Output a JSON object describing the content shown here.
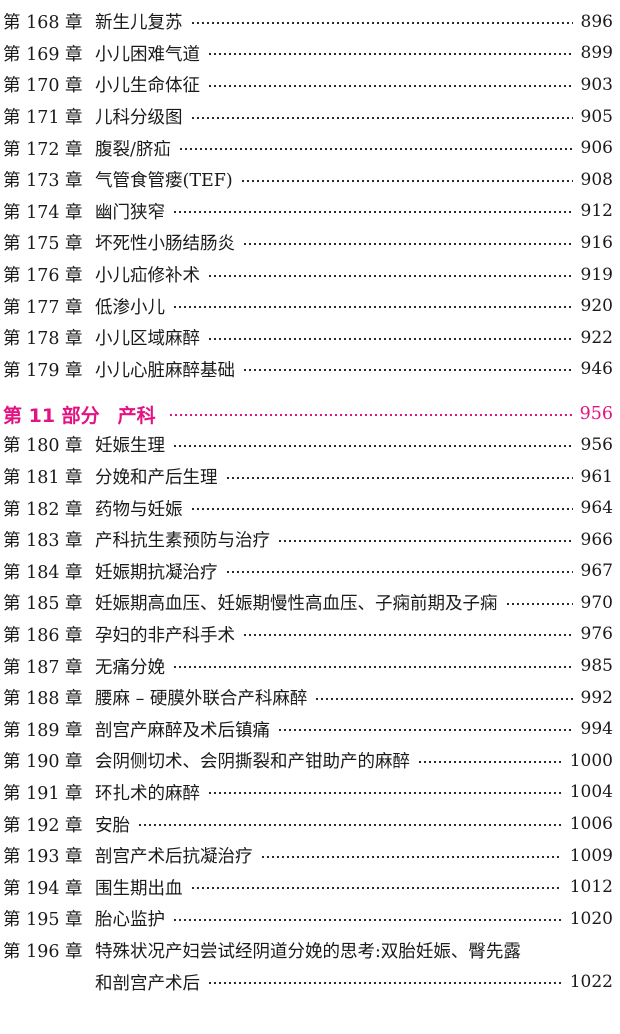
{
  "page": {
    "background": "#ffffff",
    "text_color": "#1a1a1a",
    "accent_color": "#e21382",
    "dot_color": "#2a2a2a"
  },
  "labels": {
    "chapter_prefix": "第",
    "chapter_suffix": "章",
    "part_prefix": "第",
    "part_suffix": "部分"
  },
  "toc": {
    "rows": [
      {
        "type": "chapter",
        "num": "168",
        "title": "新生儿复苏",
        "page": "896"
      },
      {
        "type": "chapter",
        "num": "169",
        "title": "小儿困难气道",
        "page": "899"
      },
      {
        "type": "chapter",
        "num": "170",
        "title": "小儿生命体征",
        "page": "903"
      },
      {
        "type": "chapter",
        "num": "171",
        "title": "儿科分级图",
        "page": "905"
      },
      {
        "type": "chapter",
        "num": "172",
        "title": "腹裂/脐疝",
        "page": "906"
      },
      {
        "type": "chapter",
        "num": "173",
        "title": "气管食管瘘(TEF)",
        "page": "908"
      },
      {
        "type": "chapter",
        "num": "174",
        "title": "幽门狭窄",
        "page": "912"
      },
      {
        "type": "chapter",
        "num": "175",
        "title": "坏死性小肠结肠炎",
        "page": "916"
      },
      {
        "type": "chapter",
        "num": "176",
        "title": "小儿疝修补术",
        "page": "919"
      },
      {
        "type": "chapter",
        "num": "177",
        "title": "低渗小儿",
        "page": "920"
      },
      {
        "type": "chapter",
        "num": "178",
        "title": "小儿区域麻醉",
        "page": "922"
      },
      {
        "type": "chapter",
        "num": "179",
        "title": "小儿心脏麻醉基础",
        "page": "946"
      },
      {
        "type": "part",
        "num": "11",
        "title": "产科",
        "page": "956"
      },
      {
        "type": "chapter",
        "num": "180",
        "title": "妊娠生理",
        "page": "956"
      },
      {
        "type": "chapter",
        "num": "181",
        "title": "分娩和产后生理",
        "page": "961"
      },
      {
        "type": "chapter",
        "num": "182",
        "title": "药物与妊娠",
        "page": "964"
      },
      {
        "type": "chapter",
        "num": "183",
        "title": "产科抗生素预防与治疗",
        "page": "966"
      },
      {
        "type": "chapter",
        "num": "184",
        "title": "妊娠期抗凝治疗",
        "page": "967"
      },
      {
        "type": "chapter",
        "num": "185",
        "title": "妊娠期高血压、妊娠期慢性高血压、子痫前期及子痫",
        "page": "970"
      },
      {
        "type": "chapter",
        "num": "186",
        "title": "孕妇的非产科手术",
        "page": "976"
      },
      {
        "type": "chapter",
        "num": "187",
        "title": "无痛分娩",
        "page": "985"
      },
      {
        "type": "chapter",
        "num": "188",
        "title": "腰麻 – 硬膜外联合产科麻醉",
        "page": "992"
      },
      {
        "type": "chapter",
        "num": "189",
        "title": "剖宫产麻醉及术后镇痛",
        "page": "994"
      },
      {
        "type": "chapter",
        "num": "190",
        "title": "会阴侧切术、会阴撕裂和产钳助产的麻醉",
        "page": "1000"
      },
      {
        "type": "chapter",
        "num": "191",
        "title": "环扎术的麻醉",
        "page": "1004"
      },
      {
        "type": "chapter",
        "num": "192",
        "title": "安胎",
        "page": "1006"
      },
      {
        "type": "chapter",
        "num": "193",
        "title": "剖宫产术后抗凝治疗",
        "page": "1009"
      },
      {
        "type": "chapter",
        "num": "194",
        "title": "围生期出血",
        "page": "1012"
      },
      {
        "type": "chapter",
        "num": "195",
        "title": "胎心监护",
        "page": "1020"
      },
      {
        "type": "chapter",
        "num": "196",
        "title": "特殊状况产妇尝试经阴道分娩的思考:双胎妊娠、臀先露",
        "title2": "和剖宫产术后",
        "page": "1022"
      }
    ]
  }
}
